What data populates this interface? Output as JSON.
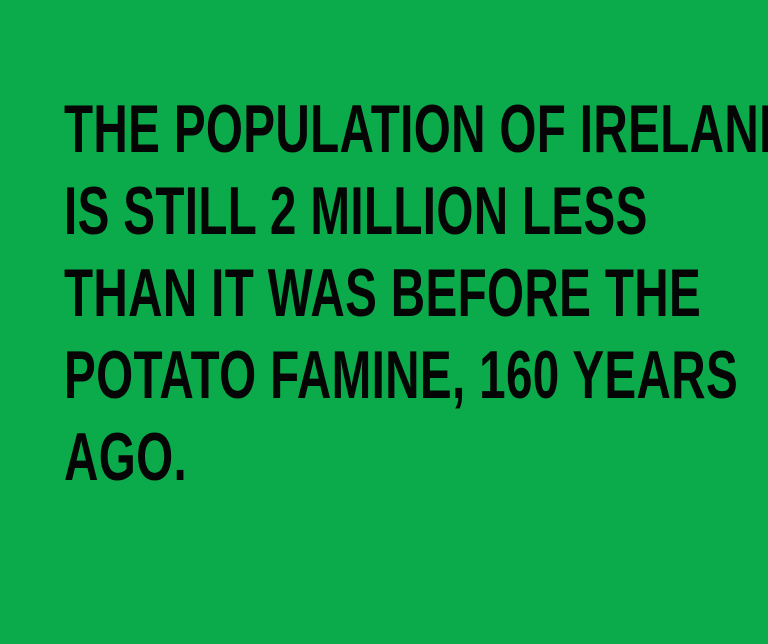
{
  "card": {
    "background_color": "#0bab4b",
    "text_color": "#050505",
    "lines": [
      "THE POPULATION OF IRELAND",
      "IS STILL 2 MILLION LESS",
      "THAN IT WAS BEFORE THE",
      "POTATO FAMINE, 160 YEARS",
      "AGO."
    ]
  }
}
